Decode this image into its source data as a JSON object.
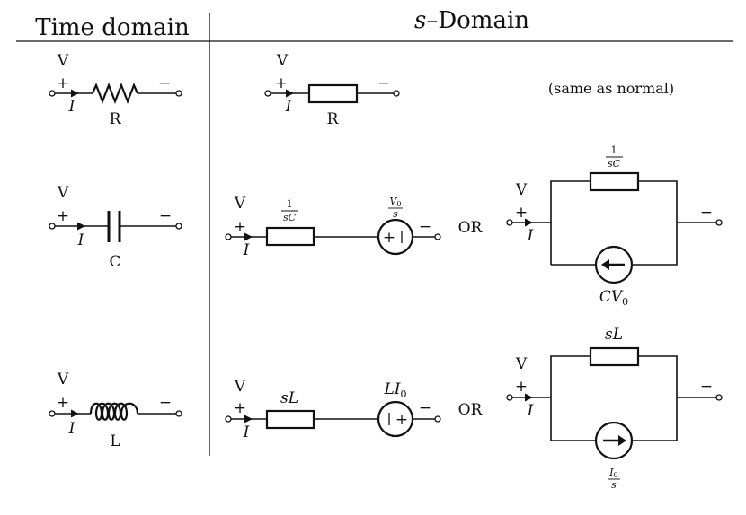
{
  "headers": {
    "time": "Time domain",
    "s_italic": "s",
    "s_rest": "–Domain"
  },
  "labels": {
    "v": "V",
    "plus": "+",
    "minus": "−",
    "i": "I",
    "r": "R",
    "c": "C",
    "l": "L",
    "or": "OR",
    "same_as_normal": "(same as normal)",
    "one": "1",
    "sc": "sC",
    "v0": "V",
    "v0_sub": "0",
    "s": "s",
    "sl": "sL",
    "li0_main": "LI",
    "li0_sub": "0",
    "cv0_main": "CV",
    "cv0_sub": "0",
    "i0_main": "I",
    "i0_sub": "0"
  }
}
